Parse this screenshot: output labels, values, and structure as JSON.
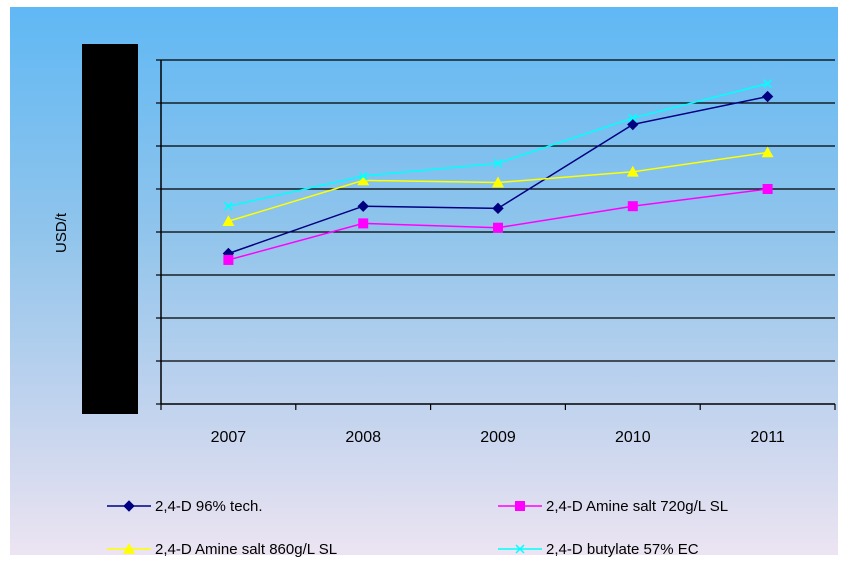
{
  "chart_data": {
    "type": "line",
    "title": "",
    "xlabel": "",
    "ylabel": "USD/t",
    "categories": [
      "2007",
      "2008",
      "2009",
      "2010",
      "2011"
    ],
    "ylim": [
      0,
      8
    ],
    "grid": true,
    "legend_position": "bottom",
    "series": [
      {
        "name": "2,4-D 96% tech.",
        "color": "#000080",
        "marker": "diamond",
        "values": [
          3.5,
          4.6,
          4.55,
          6.5,
          7.15
        ]
      },
      {
        "name": "2,4-D Amine salt 720g/L SL",
        "color": "#ff00ff",
        "marker": "square",
        "values": [
          3.35,
          4.2,
          4.1,
          4.6,
          5.0
        ]
      },
      {
        "name": "2,4-D Amine salt 860g/L SL",
        "color": "#ffff00",
        "marker": "triangle",
        "values": [
          4.25,
          5.2,
          5.15,
          5.4,
          5.85
        ]
      },
      {
        "name": "2,4-D butylate 57% EC",
        "color": "#00ffff",
        "marker": "x",
        "values": [
          4.6,
          5.3,
          5.6,
          6.65,
          7.45
        ]
      }
    ]
  }
}
